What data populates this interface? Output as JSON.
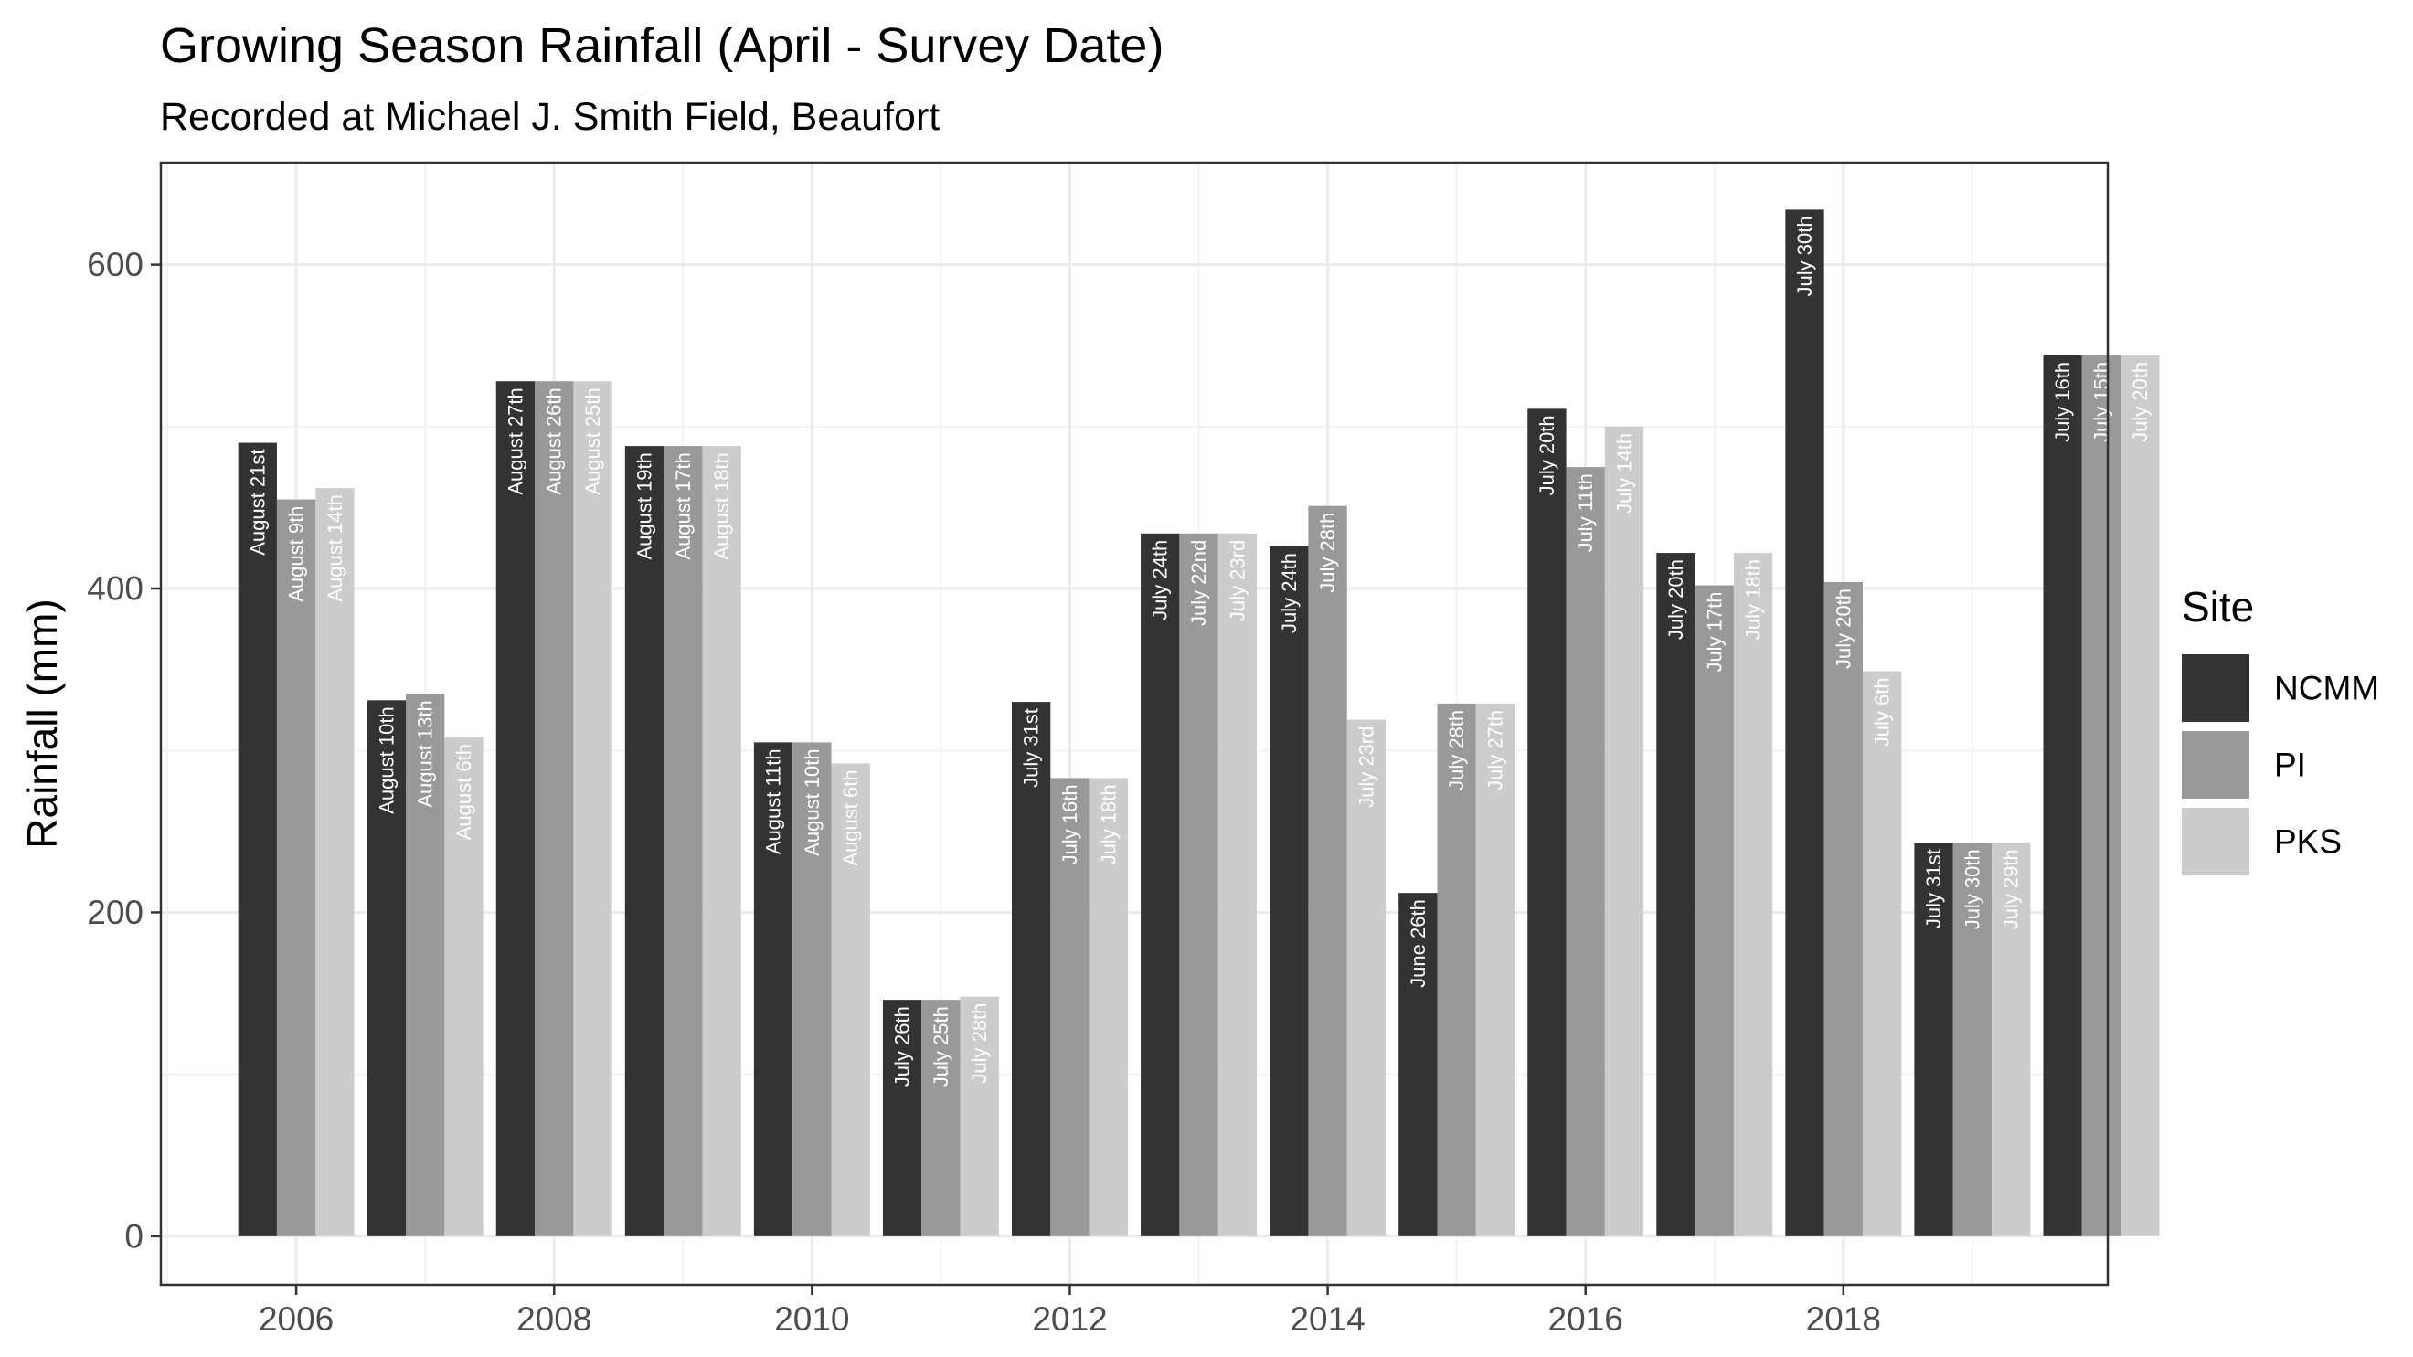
{
  "chart_data": {
    "type": "bar",
    "title": "Growing Season Rainfall (April - Survey Date)",
    "subtitle": "Recorded at Michael J. Smith Field, Beaufort",
    "xlabel": "",
    "ylabel": "Rainfall (mm)",
    "ylim": [
      -30,
      663
    ],
    "xlim": [
      2004.95,
      2020.05
    ],
    "grid": true,
    "legend": {
      "title": "Site",
      "position": "right"
    },
    "x_ticks": [
      "2006",
      "2008",
      "2010",
      "2012",
      "2014",
      "2016",
      "2018"
    ],
    "y_ticks": [
      "0",
      "200",
      "400",
      "600"
    ],
    "categories": [
      "2006",
      "2007",
      "2008",
      "2009",
      "2010",
      "2011",
      "2012",
      "2013",
      "2014",
      "2015",
      "2016",
      "2017",
      "2018",
      "2019",
      "2020"
    ],
    "series": [
      {
        "name": "NCMM",
        "color": "#333333",
        "label_color": "#ffffff",
        "values": [
          490,
          331,
          528,
          488,
          305,
          146,
          330,
          434,
          426,
          212,
          511,
          422,
          634,
          243,
          544
        ],
        "labels": [
          "August 21st",
          "August 10th",
          "August 27th",
          "August 19th",
          "August 11th",
          "July 26th",
          "July 31st",
          "July 24th",
          "July 24th",
          "June 26th",
          "July 20th",
          "July 20th",
          "July 30th",
          "July 31st",
          "July 16th"
        ]
      },
      {
        "name": "PI",
        "color": "#999999",
        "label_color": "#ffffff",
        "values": [
          455,
          335,
          528,
          488,
          305,
          146,
          283,
          434,
          451,
          329,
          475,
          402,
          404,
          243,
          544
        ],
        "labels": [
          "August 9th",
          "August 13th",
          "August 26th",
          "August 17th",
          "August 10th",
          "July 25th",
          "July 16th",
          "July 22nd",
          "July 28th",
          "July 28th",
          "July 11th",
          "July 17th",
          "July 20th",
          "July 30th",
          "July 15th"
        ]
      },
      {
        "name": "PKS",
        "color": "#cccccc",
        "label_color": "#ffffff",
        "values": [
          462,
          308,
          528,
          488,
          292,
          148,
          283,
          434,
          319,
          329,
          500,
          422,
          349,
          243,
          544
        ],
        "labels": [
          "August 14th",
          "August 6th",
          "August 25th",
          "August 18th",
          "August 6th",
          "July 28th",
          "July 18th",
          "July 23rd",
          "July 23rd",
          "July 27th",
          "July 14th",
          "July 18th",
          "July 6th",
          "July 29th",
          "July 20th"
        ]
      }
    ]
  }
}
